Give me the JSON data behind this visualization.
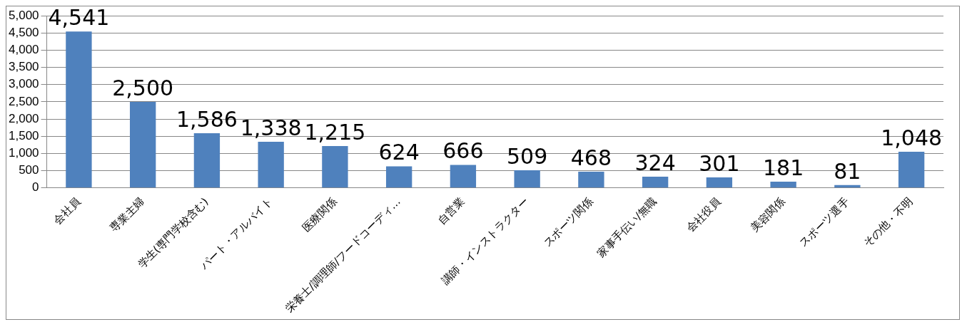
{
  "chart_data": {
    "type": "bar",
    "categories": [
      "会社員",
      "専業主婦",
      "学生(専門学校含む)",
      "パート・アルバイト",
      "医療関係",
      "栄養士/調理師/フードコーディ…",
      "自営業",
      "講師・インストラクター",
      "スポーツ関係",
      "家事手伝い/無職",
      "会社役員",
      "美容関係",
      "スポーツ選手",
      "その他・不明"
    ],
    "values": [
      4541,
      2500,
      1586,
      1338,
      1215,
      624,
      666,
      509,
      468,
      324,
      301,
      181,
      81,
      1048
    ],
    "value_labels": [
      "4,541",
      "2,500",
      "1,586",
      "1,338",
      "1,215",
      "624",
      "666",
      "509",
      "468",
      "324",
      "301",
      "181",
      "81",
      "1,048"
    ],
    "color": "#4f81bd",
    "ylim": [
      0,
      5000
    ],
    "yticks": [
      {
        "value": 0,
        "label": "0"
      },
      {
        "value": 500,
        "label": "500"
      },
      {
        "value": 1000,
        "label": "1,000"
      },
      {
        "value": 1500,
        "label": "1,500"
      },
      {
        "value": 2000,
        "label": "2,000"
      },
      {
        "value": 2500,
        "label": "2,500"
      },
      {
        "value": 3000,
        "label": "3,000"
      },
      {
        "value": 3500,
        "label": "3,500"
      },
      {
        "value": 4000,
        "label": "4,000"
      },
      {
        "value": 4500,
        "label": "4,500"
      },
      {
        "value": 5000,
        "label": "5,000"
      }
    ],
    "grid": "y",
    "legend": false
  }
}
